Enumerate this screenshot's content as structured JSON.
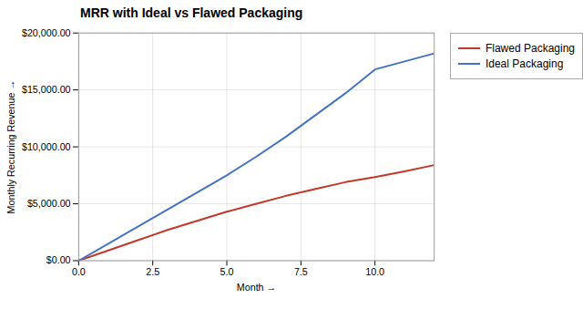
{
  "chart_data": {
    "type": "line",
    "title": "MRR with Ideal vs Flawed Packaging",
    "xlabel": "Month",
    "ylabel": "Monthly Recurring Revenue",
    "x": [
      0,
      1,
      2,
      3,
      4,
      5,
      6,
      7,
      8,
      9,
      10,
      11,
      12
    ],
    "series": [
      {
        "name": "Flawed Packaging",
        "color": "#C0392B",
        "values": [
          0,
          900,
          1800,
          2700,
          3500,
          4300,
          5000,
          5700,
          6300,
          6900,
          7350,
          7850,
          8400
        ]
      },
      {
        "name": "Ideal Packaging",
        "color": "#4472C4",
        "values": [
          0,
          1500,
          3000,
          4500,
          6000,
          7500,
          9150,
          10900,
          12800,
          14700,
          16800,
          17500,
          18200
        ]
      }
    ],
    "xlim": [
      0,
      12
    ],
    "xticks": [
      {
        "value": 0,
        "label": "0.0"
      },
      2.5,
      {
        "value": 5,
        "label": "5.0"
      },
      7.5,
      {
        "value": 10,
        "label": "10.0"
      }
    ],
    "ylim": [
      0,
      20000
    ],
    "yticks": [
      {
        "value": 0,
        "label": "$0.00"
      },
      {
        "value": 5000,
        "label": "$5,000.00"
      },
      {
        "value": 10000,
        "label": "$10,000.00"
      },
      {
        "value": 15000,
        "label": "$15,000.00"
      },
      {
        "value": 20000,
        "label": "$20,000.00"
      }
    ],
    "grid": true,
    "legend": "right"
  }
}
